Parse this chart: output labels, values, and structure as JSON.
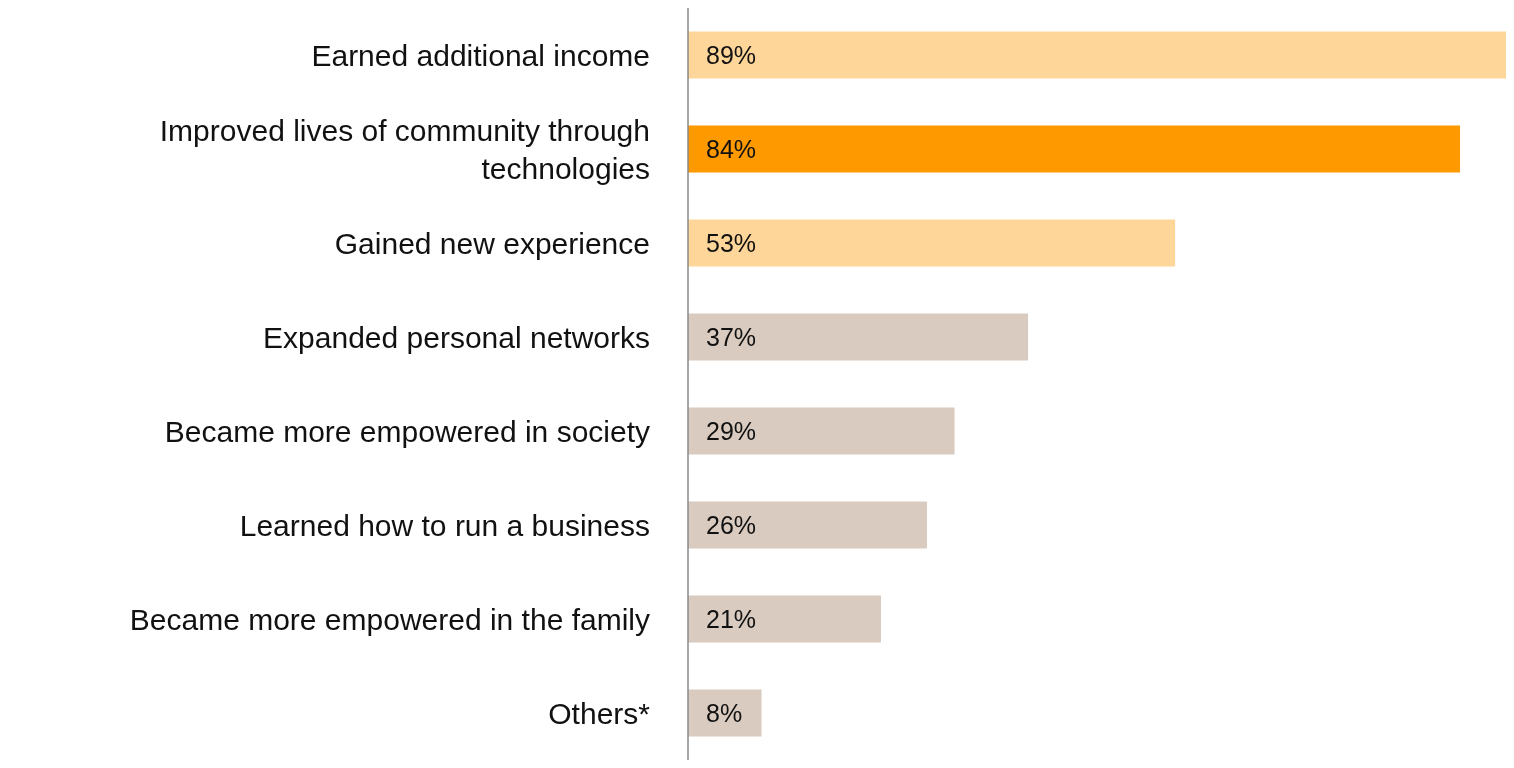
{
  "chart_data": {
    "type": "bar",
    "orientation": "horizontal",
    "categories": [
      "Earned additional income",
      "Improved lives of community through technologies",
      "Gained new experience",
      "Expanded personal networks",
      "Became more empowered in society",
      "Learned how to run a business",
      "Became more empowered in the family",
      "Others*"
    ],
    "values": [
      89,
      84,
      53,
      37,
      29,
      26,
      21,
      8
    ],
    "colors": [
      "#ffd699",
      "#ff9900",
      "#ffd699",
      "#d9cbbf",
      "#d9cbbf",
      "#d9cbbf",
      "#d9cbbf",
      "#d9cbbf"
    ],
    "value_labels": [
      "89%",
      "84%",
      "53%",
      "37%",
      "29%",
      "26%",
      "21%",
      "8%"
    ]
  }
}
